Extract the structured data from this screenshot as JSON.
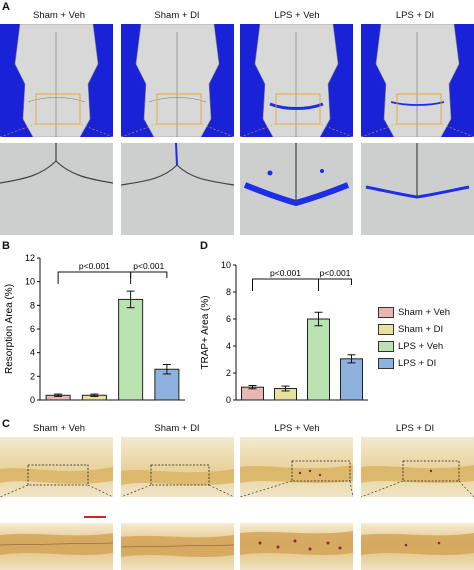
{
  "panels": {
    "A": {
      "letter": "A",
      "groups": [
        "Sham + Veh",
        "Sham + DI",
        "LPS + Veh",
        "LPS + DI"
      ]
    },
    "C": {
      "letter": "C",
      "groups": [
        "Sham + Veh",
        "Sham + DI",
        "LPS + Veh",
        "LPS + DI"
      ]
    }
  },
  "colors": {
    "ct_background": "#1a22d8",
    "ct_highlight": "#1e2ee6",
    "roi_box": "#e8a020",
    "scale_bar": "#e02020",
    "sham_veh": "#e8b7b3",
    "sham_di": "#e6e2a0",
    "lps_veh": "#b9e3b0",
    "lps_di": "#8fb1de"
  },
  "legend": [
    "Sham + Veh",
    "Sham + DI",
    "LPS + Veh",
    "LPS + DI"
  ],
  "chart_data": [
    {
      "panel": "B",
      "type": "bar",
      "categories": [
        "Sham + Veh",
        "Sham + DI",
        "LPS + Veh",
        "LPS + DI"
      ],
      "values": [
        0.4,
        0.4,
        8.5,
        2.6
      ],
      "errors": [
        0.1,
        0.1,
        0.7,
        0.4
      ],
      "xlabel": "",
      "ylabel": "Resorption Area (%)",
      "ylim": [
        0,
        12
      ],
      "yticks": [
        "0",
        "2",
        "4",
        "6",
        "8",
        "10",
        "12"
      ],
      "significance": [
        {
          "from": 0,
          "to": 2,
          "label": "p<0.001"
        },
        {
          "from": 2,
          "to": 3,
          "label": "p<0.001"
        }
      ],
      "colors": [
        "#e8b7b3",
        "#e6e2a0",
        "#b9e3b0",
        "#8fb1de"
      ]
    },
    {
      "panel": "D",
      "type": "bar",
      "categories": [
        "Sham + Veh",
        "Sham + DI",
        "LPS + Veh",
        "LPS + DI"
      ],
      "values": [
        0.95,
        0.85,
        6.0,
        3.05
      ],
      "errors": [
        0.12,
        0.18,
        0.5,
        0.3
      ],
      "xlabel": "",
      "ylabel": "TRAP+ Area (%)",
      "ylim": [
        0,
        10
      ],
      "yticks": [
        "0",
        "2",
        "4",
        "6",
        "8",
        "10"
      ],
      "significance": [
        {
          "from": 0,
          "to": 2,
          "label": "p<0.001"
        },
        {
          "from": 2,
          "to": 3,
          "label": "p<0.001"
        }
      ],
      "colors": [
        "#e8b7b3",
        "#e6e2a0",
        "#b9e3b0",
        "#8fb1de"
      ]
    }
  ]
}
